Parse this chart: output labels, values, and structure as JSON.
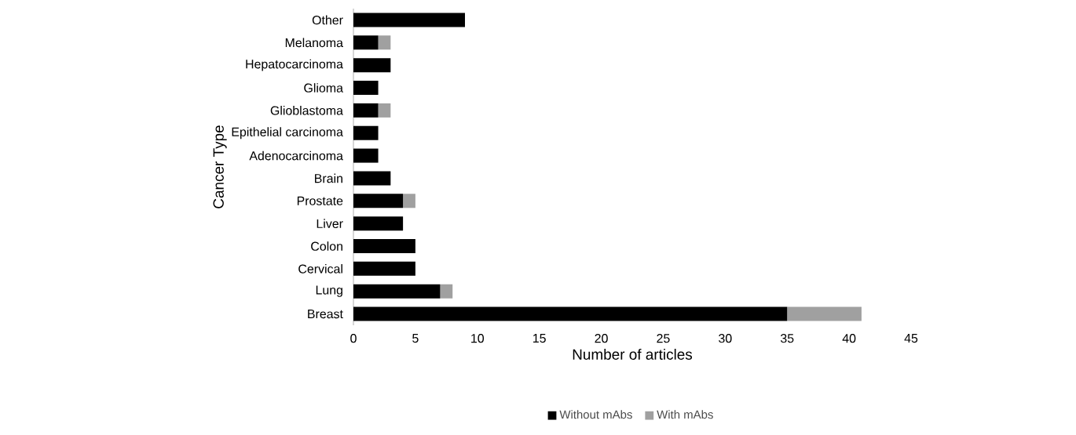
{
  "chart_data": {
    "type": "bar",
    "orientation": "horizontal",
    "stacked": true,
    "categories": [
      "Other",
      "Melanoma",
      "Hepatocarcinoma",
      "Glioma",
      "Glioblastoma",
      "Epithelial carcinoma",
      "Adenocarcinoma",
      "Brain",
      "Prostate",
      "Liver",
      "Colon",
      "Cervical",
      "Lung",
      "Breast"
    ],
    "series": [
      {
        "name": "Without mAbs",
        "color": "#000000",
        "values": [
          9,
          2,
          3,
          2,
          2,
          2,
          2,
          3,
          4,
          4,
          5,
          5,
          7,
          35
        ]
      },
      {
        "name": "With mAbs",
        "color": "#a0a0a0",
        "values": [
          0,
          1,
          0,
          0,
          1,
          0,
          0,
          0,
          1,
          0,
          0,
          0,
          1,
          6
        ]
      }
    ],
    "xlabel": "Number of articles",
    "ylabel": "Cancer Type",
    "xlim": [
      0,
      45
    ],
    "xticks": [
      0,
      5,
      10,
      15,
      20,
      25,
      30,
      35,
      40,
      45
    ],
    "grid": false,
    "legend": "bottom"
  }
}
